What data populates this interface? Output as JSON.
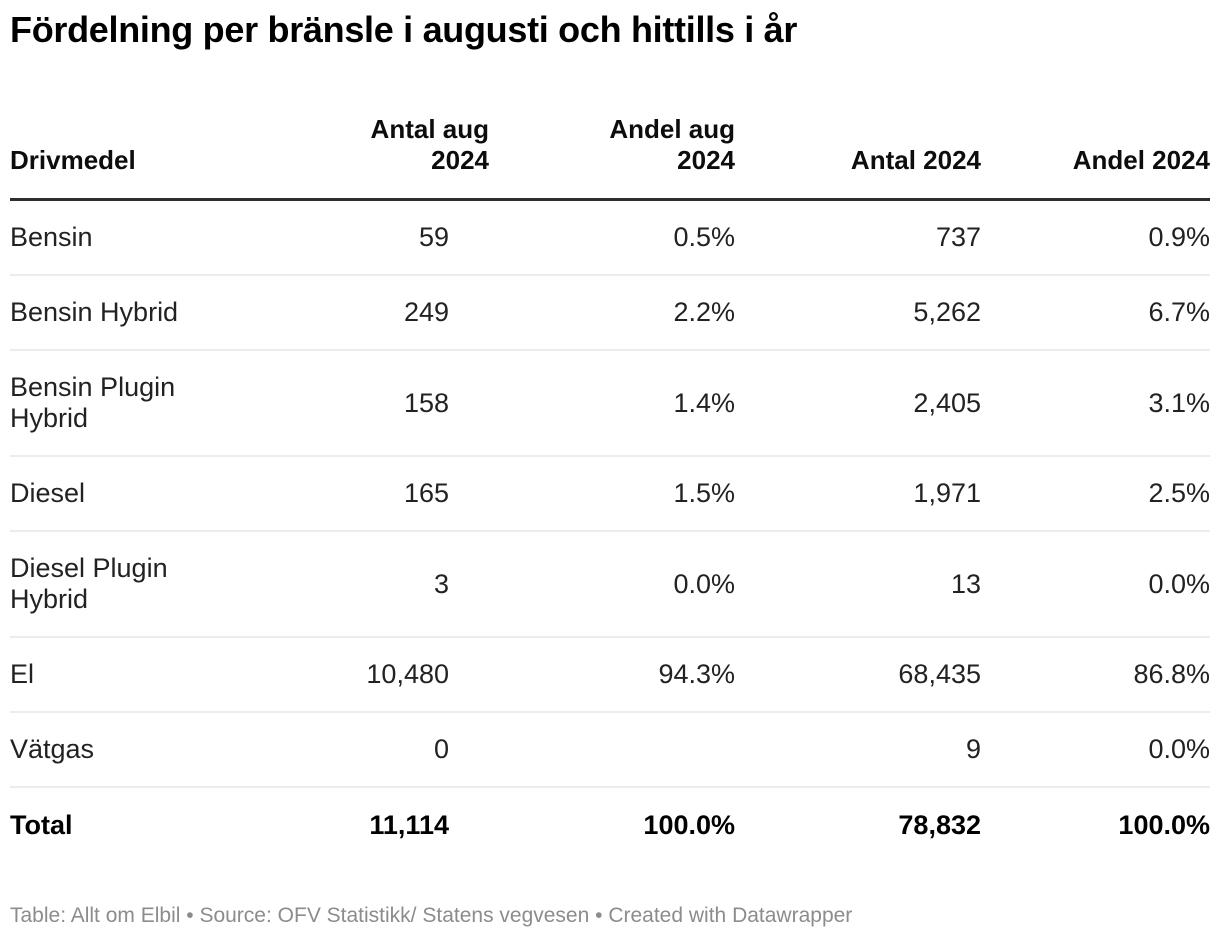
{
  "title": "Fördelning per bränsle i augusti och hittills i år",
  "table": {
    "headers": [
      "Drivmedel",
      "Antal aug\n2024",
      "Andel aug\n2024",
      "Antal 2024",
      "Andel 2024"
    ],
    "rows": [
      {
        "cells": [
          "Bensin",
          "59",
          "0.5%",
          "737",
          "0.9%"
        ]
      },
      {
        "cells": [
          "Bensin Hybrid",
          "249",
          "2.2%",
          "5,262",
          "6.7%"
        ]
      },
      {
        "cells": [
          "Bensin Plugin Hybrid",
          "158",
          "1.4%",
          "2,405",
          "3.1%"
        ]
      },
      {
        "cells": [
          "Diesel",
          "165",
          "1.5%",
          "1,971",
          "2.5%"
        ]
      },
      {
        "cells": [
          "Diesel Plugin Hybrid",
          "3",
          "0.0%",
          "13",
          "0.0%"
        ]
      },
      {
        "cells": [
          "El",
          "10,480",
          "94.3%",
          "68,435",
          "86.8%"
        ]
      },
      {
        "cells": [
          "Vätgas",
          "0",
          "",
          "9",
          "0.0%"
        ]
      }
    ],
    "total": {
      "cells": [
        "Total",
        "11,114",
        "100.0%",
        "78,832",
        "100.0%"
      ]
    }
  },
  "footer": {
    "table_prefix": "Table: ",
    "table_credit": "Allt om Elbil",
    "source_separator": " • Source: ",
    "source_credit": "OFV Statistikk/ Statens vegvesen",
    "created_separator": " • ",
    "created_prefix": "Created with ",
    "created_credit": "Datawrapper"
  },
  "colors": {
    "title_text": "#000000",
    "body_text": "#222222",
    "header_rule": "#2e2e2e",
    "row_divider": "#ececec",
    "footer_text": "#8c8c8c"
  },
  "chart_data": {
    "type": "table",
    "title": "Fördelning per bränsle i augusti och hittills i år",
    "columns": [
      "Drivmedel",
      "Antal aug 2024",
      "Andel aug 2024",
      "Antal 2024",
      "Andel 2024"
    ],
    "rows": [
      [
        "Bensin",
        59,
        "0.5%",
        737,
        "0.9%"
      ],
      [
        "Bensin Hybrid",
        249,
        "2.2%",
        5262,
        "6.7%"
      ],
      [
        "Bensin Plugin Hybrid",
        158,
        "1.4%",
        2405,
        "3.1%"
      ],
      [
        "Diesel",
        165,
        "1.5%",
        1971,
        "2.5%"
      ],
      [
        "Diesel Plugin Hybrid",
        3,
        "0.0%",
        13,
        "0.0%"
      ],
      [
        "El",
        10480,
        "94.3%",
        68435,
        "86.8%"
      ],
      [
        "Vätgas",
        0,
        null,
        9,
        "0.0%"
      ],
      [
        "Total",
        11114,
        "100.0%",
        78832,
        "100.0%"
      ]
    ],
    "notes": "Vätgas row has an empty 'Andel aug 2024' cell; Total row is bold.",
    "footer": "Table: Allt om Elbil • Source: OFV Statistikk/ Statens vegvesen • Created with Datawrapper"
  }
}
